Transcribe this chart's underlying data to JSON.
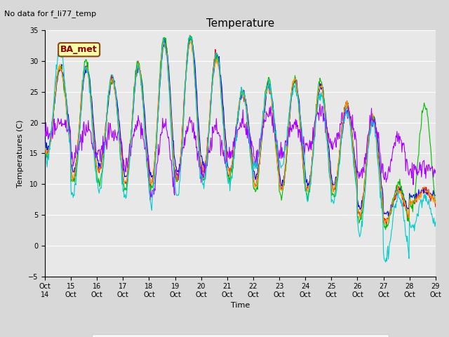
{
  "title": "Temperature",
  "xlabel": "Time",
  "ylabel": "Temperatures (C)",
  "note": "No data for f_li77_temp",
  "station_label": "BA_met",
  "ylim": [
    -5,
    35
  ],
  "yticks": [
    -5,
    0,
    5,
    10,
    15,
    20,
    25,
    30,
    35
  ],
  "x_tick_labels": [
    "Oct 14",
    "Oct 15",
    "Oct 16",
    "Oct 17",
    "Oct 18",
    "Oct 19",
    "Oct 20",
    "Oct 21",
    "Oct 22",
    "Oct 23",
    "Oct 24",
    "Oct 25",
    "Oct 26",
    "Oct 27",
    "Oct 28",
    "Oct 29"
  ],
  "x_tick_labels_short": [
    "Oct\n14",
    "15\nOct",
    "16\nOct",
    "17\nOct",
    "18\nOct",
    "19\nOct",
    "20\nOct",
    "21\nOct",
    "22\nOct",
    "23\nOct",
    "24\nOct",
    "25\nOct",
    "26\nOct",
    "27\nOct",
    "28\nOct",
    "29"
  ],
  "series_colors": {
    "AirT": "#ff0000",
    "PanelT": "#0000ff",
    "AM25T_PRT": "#00bb00",
    "li75_t": "#ff9900",
    "Tsonic": "#aa00ff",
    "NR01_PRT": "#00cccc"
  },
  "fig_background": "#d8d8d8",
  "plot_background": "#e8e8e8",
  "grid_color": "#ffffff",
  "title_fontsize": 11,
  "axis_fontsize": 8,
  "tick_fontsize": 7,
  "legend_fontsize": 8,
  "note_fontsize": 8
}
